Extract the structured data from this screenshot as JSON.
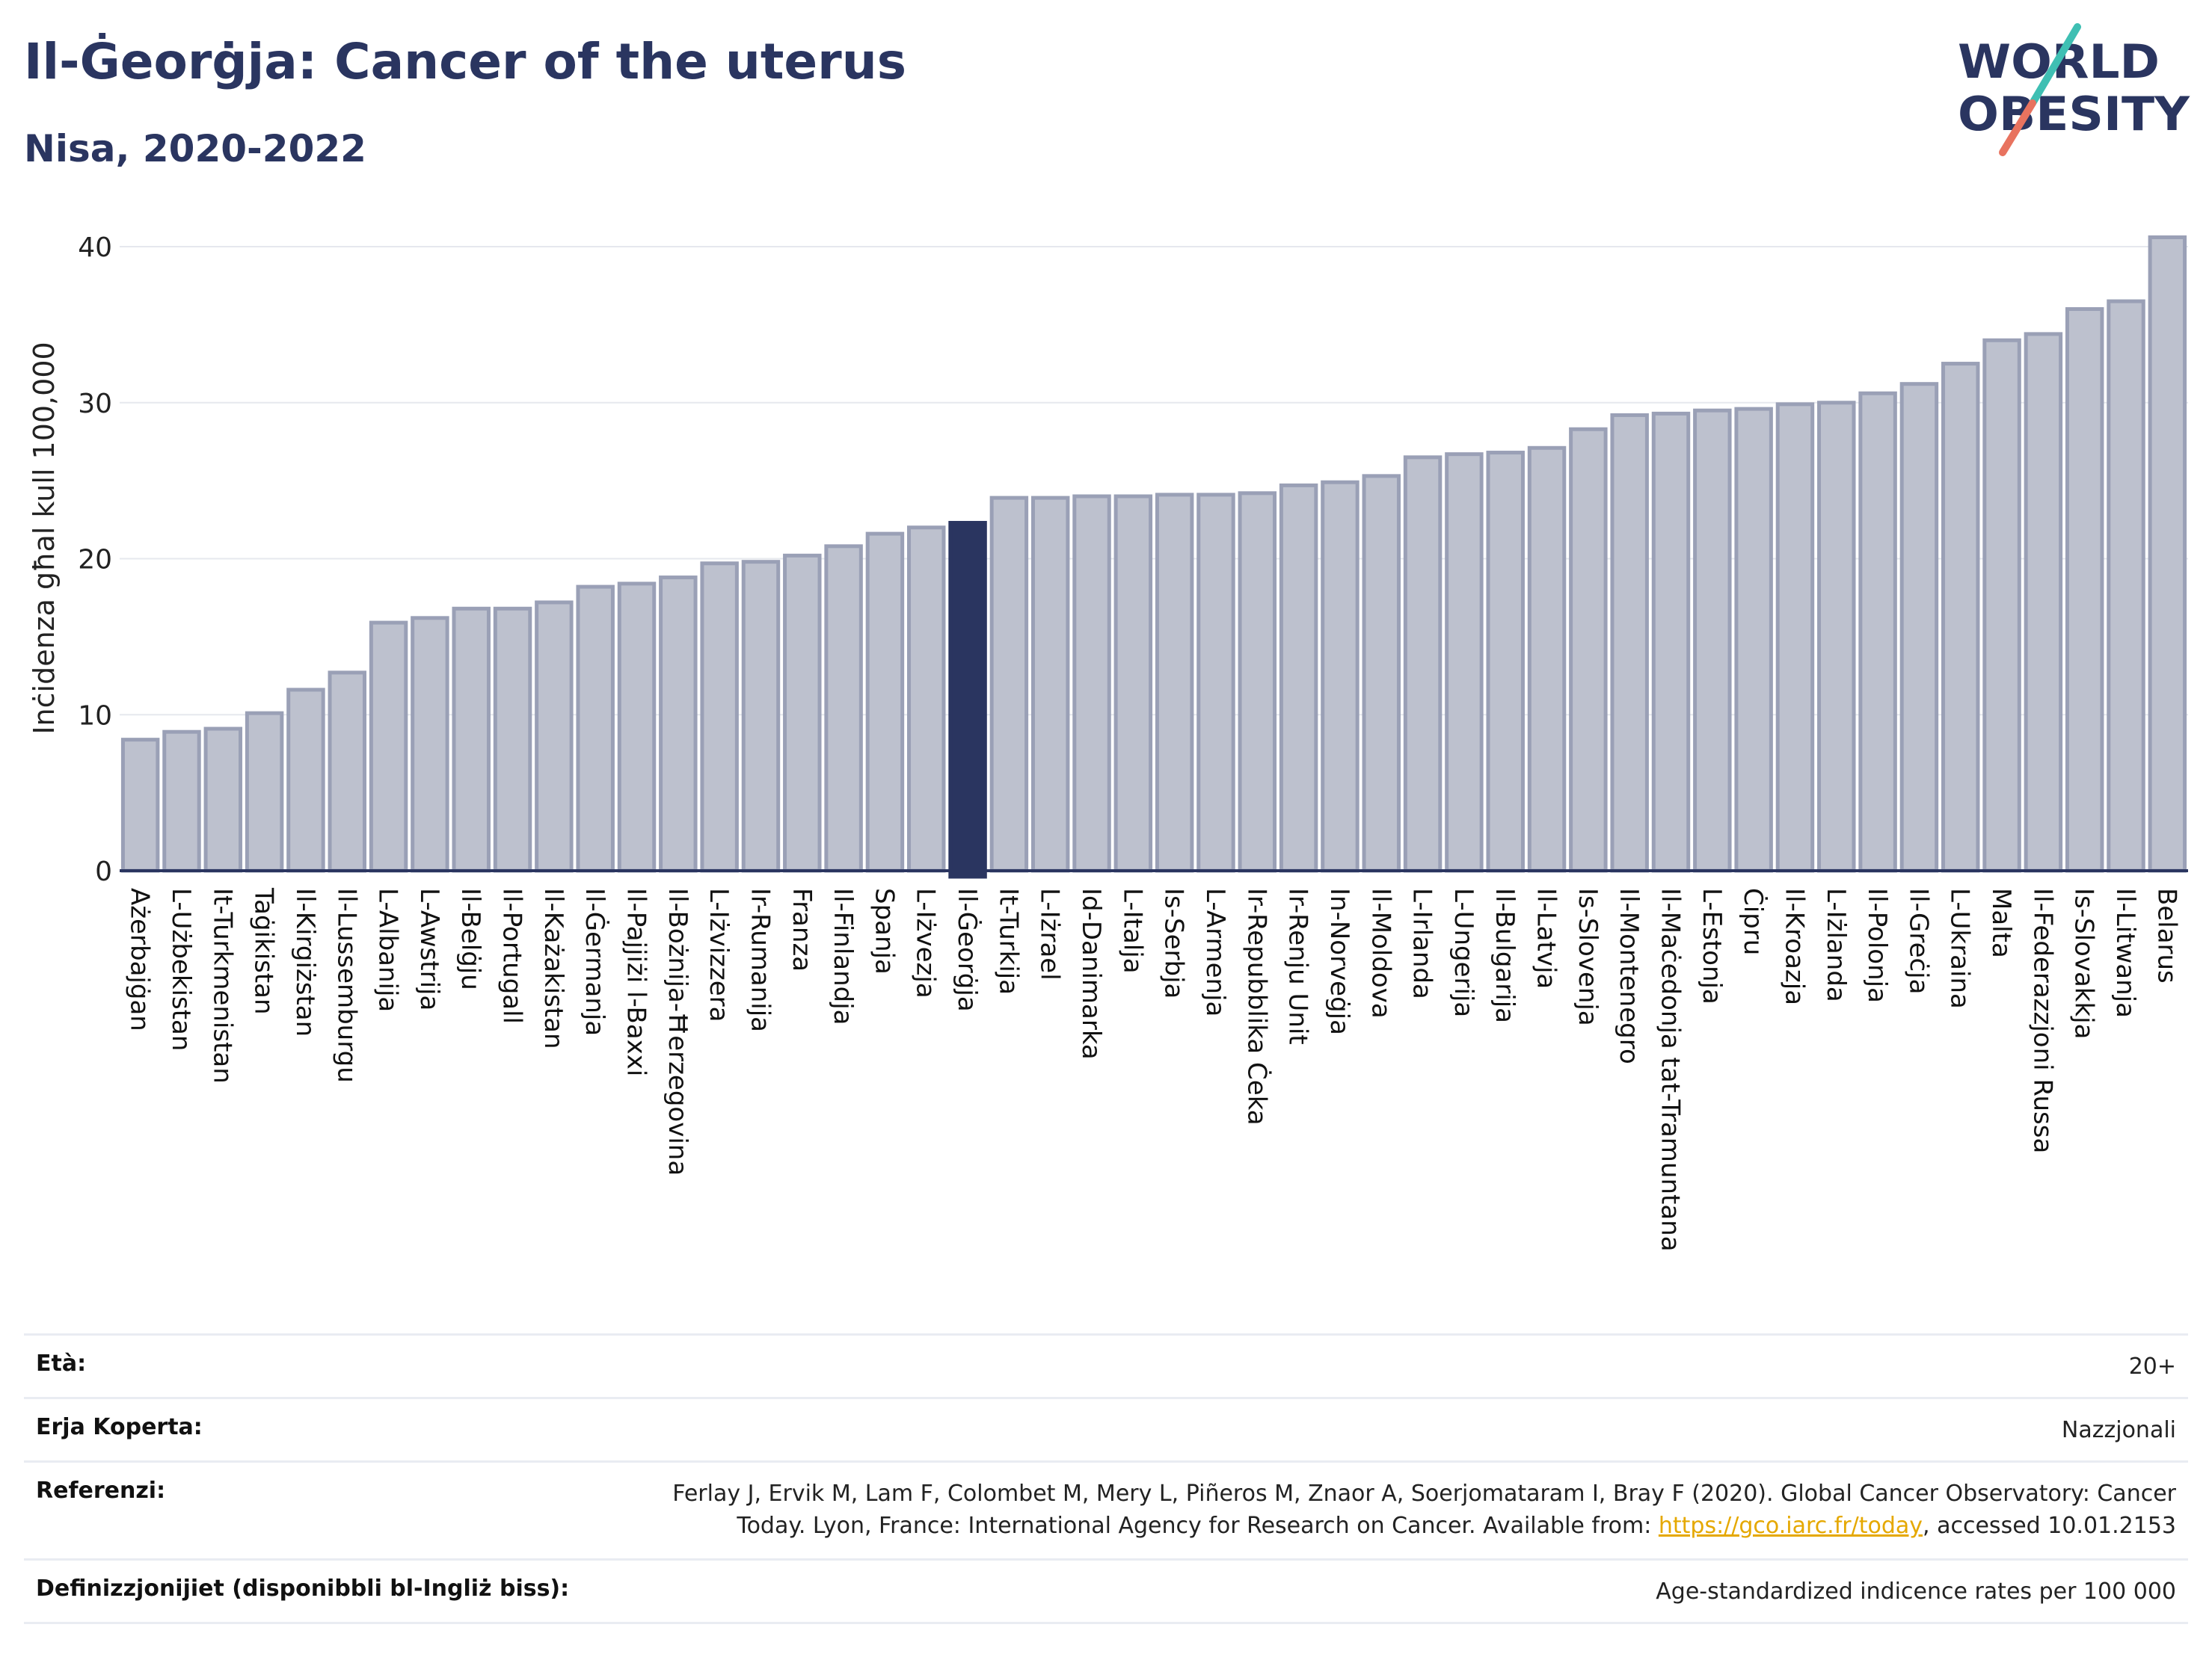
{
  "header": {
    "title": "Il-Ġeorġja: Cancer of the uterus",
    "subtitle": "Nisa, 2020-2022"
  },
  "logo": {
    "line1": "WORLD",
    "line2": "OBESITY",
    "colors": {
      "navy": "#2a3560",
      "teal": "#3fbfb3",
      "coral": "#e8735f"
    }
  },
  "chart_data": {
    "type": "bar",
    "ylabel": "Inċidenza għal kull 100,000",
    "ylim": [
      0,
      42
    ],
    "yticks": [
      0,
      10,
      20,
      30,
      40
    ],
    "grid": true,
    "highlight_category": "Il-Ġeorġja",
    "colors": {
      "bar": "#bdc1ce",
      "bar_stroke": "#9aa0b6",
      "highlight": "#2a3560",
      "grid": "#e6e8ee",
      "axis": "#2a3560"
    },
    "categories": [
      "Ażerbajġan",
      "L-Użbekistan",
      "It-Turkmenistan",
      "Taġikistan",
      "Il-Kirgiżstan",
      "Il-Lussemburgu",
      "L-Albanija",
      "L-Awstrija",
      "Il-Belġju",
      "Il-Portugall",
      "Il-Każakistan",
      "Il-Ġermanja",
      "Il-Pajjiżi l-Baxxi",
      "Il-Bożnija-Ħerzegovina",
      "L-Iżvizzera",
      "Ir-Rumanija",
      "Franza",
      "Il-Finlandja",
      "Spanja",
      "L-Iżvezja",
      "Il-Ġeorġja",
      "It-Turkija",
      "L-Iżrael",
      "Id-Danimarka",
      "L-Italja",
      "Is-Serbja",
      "L-Armenja",
      "Ir-Repubblika Ċeka",
      "Ir-Renju Unit",
      "In-Norveġja",
      "Il-Moldova",
      "L-Irlanda",
      "L-Ungerija",
      "Il-Bulgarija",
      "Il-Latvja",
      "Is-Slovenja",
      "Il-Montenegro",
      "Il-Maċedonja tat-Tramuntana",
      "L-Estonja",
      "Ċipru",
      "Il-Kroazja",
      "L-Iżlanda",
      "Il-Polonja",
      "Il-Greċja",
      "L-Ukraina",
      "Malta",
      "Il-Federazzjoni Russa",
      "Is-Slovakkja",
      "Il-Litwanja",
      "Belarus"
    ],
    "values": [
      8.4,
      8.9,
      9.1,
      10.1,
      11.6,
      12.7,
      15.9,
      16.2,
      16.8,
      16.8,
      17.2,
      18.2,
      18.4,
      18.8,
      19.7,
      19.8,
      20.2,
      20.8,
      21.6,
      22.0,
      22.3,
      23.9,
      23.9,
      24.0,
      24.0,
      24.1,
      24.1,
      24.2,
      24.7,
      24.9,
      25.3,
      26.5,
      26.7,
      26.8,
      27.1,
      28.3,
      29.2,
      29.3,
      29.5,
      29.6,
      29.9,
      30.0,
      30.6,
      31.2,
      32.5,
      34.0,
      34.4,
      36.0,
      36.5,
      40.6
    ]
  },
  "meta": {
    "age_label": "Età:",
    "age_value": "20+",
    "area_label": "Erja Koperta:",
    "area_value": "Nazzjonali",
    "ref_label": "Referenzi:",
    "ref_line1": "Ferlay J, Ervik M, Lam F, Colombet M, Mery L, Piñeros M, Znaor A, Soerjomataram I, Bray F (2020). Global Cancer Observatory: Cancer",
    "ref_line2_pre": "Today. Lyon, France: International Agency for Research on Cancer. Available from: ",
    "ref_link": "https://gco.iarc.fr/today",
    "ref_line2_post": ", accessed 10.01.2153",
    "def_label": "Definizzjonijiet (disponibbli bl-Ingliż biss):",
    "def_value": "Age-standardized indicence rates per 100 000"
  }
}
